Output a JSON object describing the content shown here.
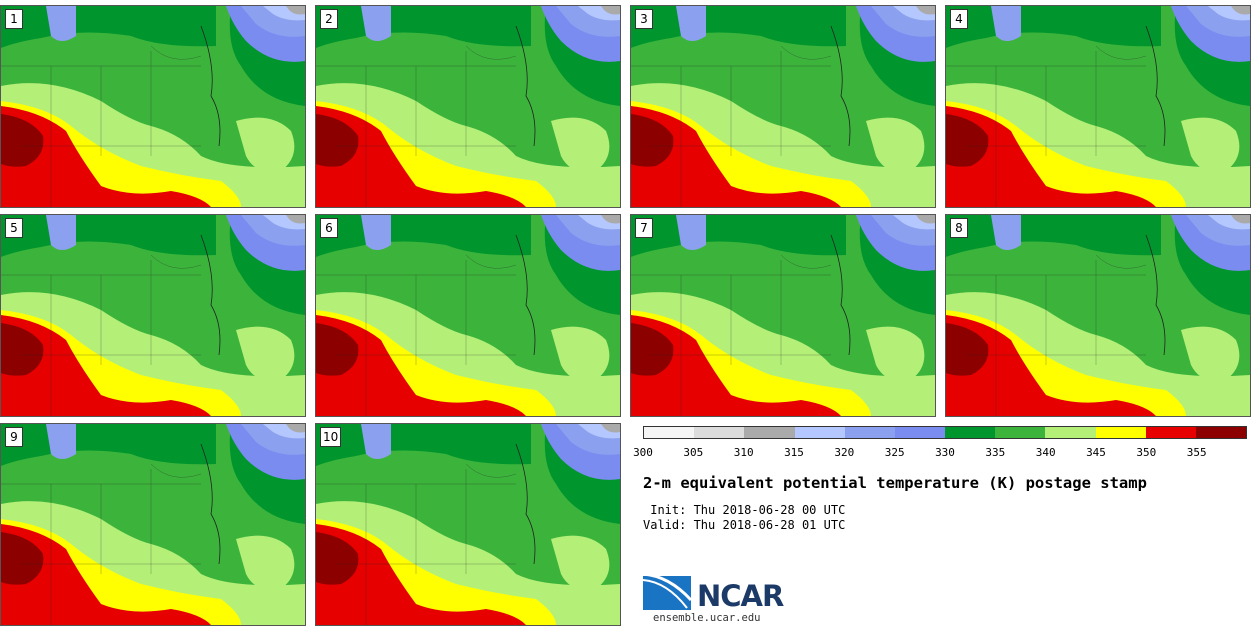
{
  "panels": [
    {
      "label": "1"
    },
    {
      "label": "2"
    },
    {
      "label": "3"
    },
    {
      "label": "4"
    },
    {
      "label": "5"
    },
    {
      "label": "6"
    },
    {
      "label": "7"
    },
    {
      "label": "8"
    },
    {
      "label": "9"
    },
    {
      "label": "10"
    }
  ],
  "colorbar": {
    "colors": [
      "#f5f5f5",
      "#dcdcdc",
      "#aaaaaa",
      "#b4c8ff",
      "#8ca0f0",
      "#7a8cf0",
      "#00962d",
      "#3cb43c",
      "#b4f078",
      "#ffff00",
      "#e60000",
      "#8c0000"
    ],
    "ticks": [
      "300",
      "305",
      "310",
      "315",
      "320",
      "325",
      "330",
      "335",
      "340",
      "345",
      "350",
      "355"
    ]
  },
  "title": "2-m equivalent potential temperature (K) postage stamp",
  "init_line": " Init: Thu 2018-06-28 00 UTC",
  "valid_line": "Valid: Thu 2018-06-28 01 UTC",
  "logo_text": "NCAR",
  "url": "ensemble.ucar.edu"
}
